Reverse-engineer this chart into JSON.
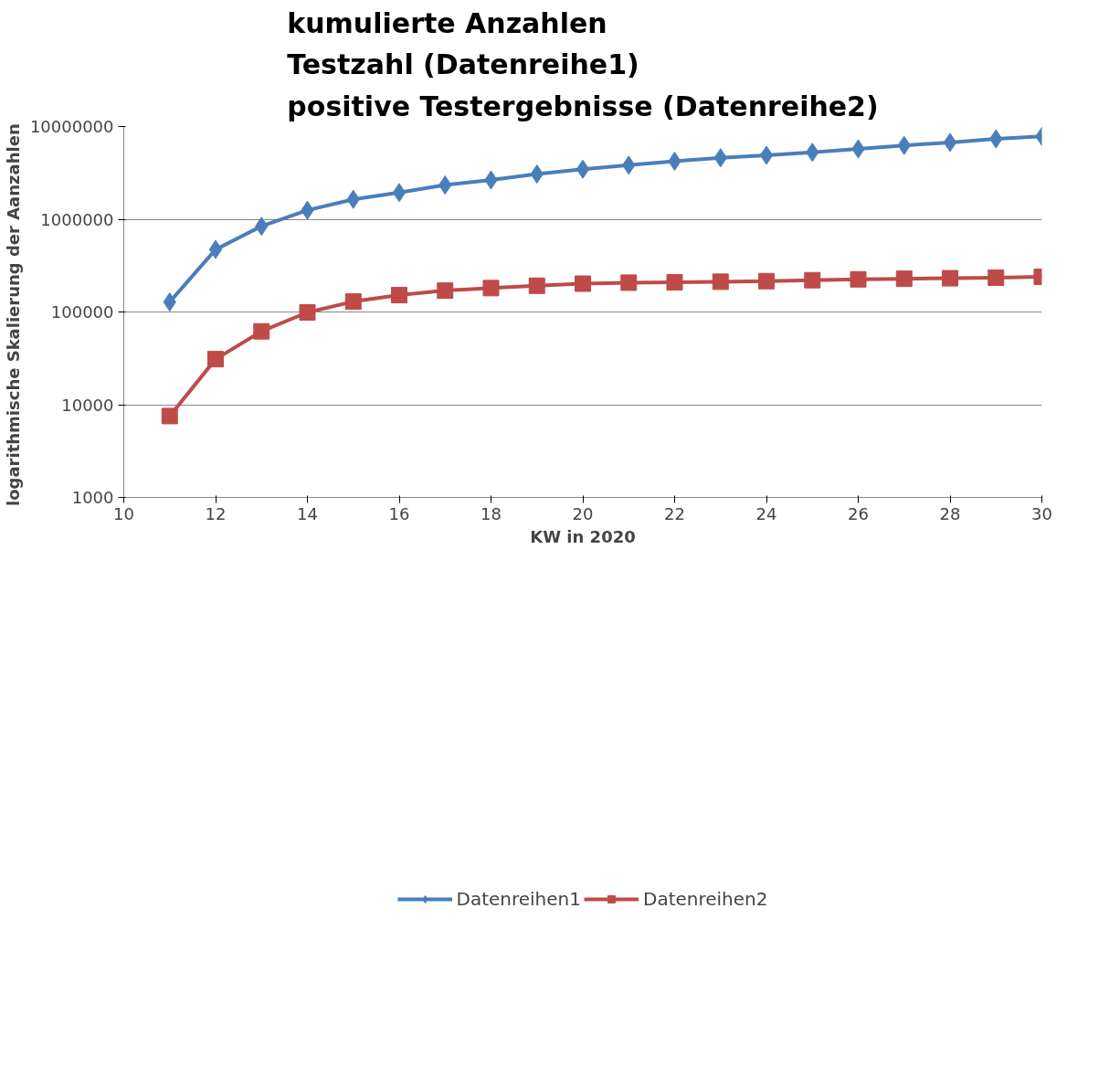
{
  "chart_data": {
    "type": "line",
    "title": "kumulierte Anzahlen\nTestzahl (Datenreihe1)\npositive Testergebnisse (Datenreihe2)",
    "xlabel": "KW in 2020",
    "ylabel": "logarithmische Skalierung  der Aanzahlen",
    "x": [
      11,
      12,
      13,
      14,
      15,
      16,
      17,
      18,
      19,
      20,
      21,
      22,
      23,
      24,
      25,
      26,
      27,
      28,
      29,
      30
    ],
    "series": [
      {
        "name": "Datenreihen1",
        "color": "#4a7ebb",
        "marker": "diamond",
        "values": [
          128000,
          472000,
          841000,
          1250000,
          1640000,
          1940000,
          2340000,
          2650000,
          3070000,
          3470000,
          3830000,
          4220000,
          4600000,
          4900000,
          5270000,
          5740000,
          6260000,
          6740000,
          7350000,
          7820000
        ]
      },
      {
        "name": "Datenreihen2",
        "color": "#be4b48",
        "marker": "square",
        "values": [
          7540,
          31000,
          61800,
          98900,
          129500,
          152000,
          170000,
          181000,
          192000,
          202000,
          207000,
          209000,
          212000,
          215000,
          220000,
          225000,
          228000,
          231000,
          234000,
          240000
        ]
      }
    ],
    "log": true,
    "xlim": [
      10,
      30
    ],
    "xticks": [
      10,
      12,
      14,
      16,
      18,
      20,
      22,
      24,
      26,
      28,
      30
    ],
    "ylim": [
      1000,
      10000000
    ],
    "yticks": [
      1000,
      10000,
      100000,
      1000000,
      10000000
    ],
    "grid": "y",
    "legend": "bottom",
    "line_style": "solid"
  }
}
